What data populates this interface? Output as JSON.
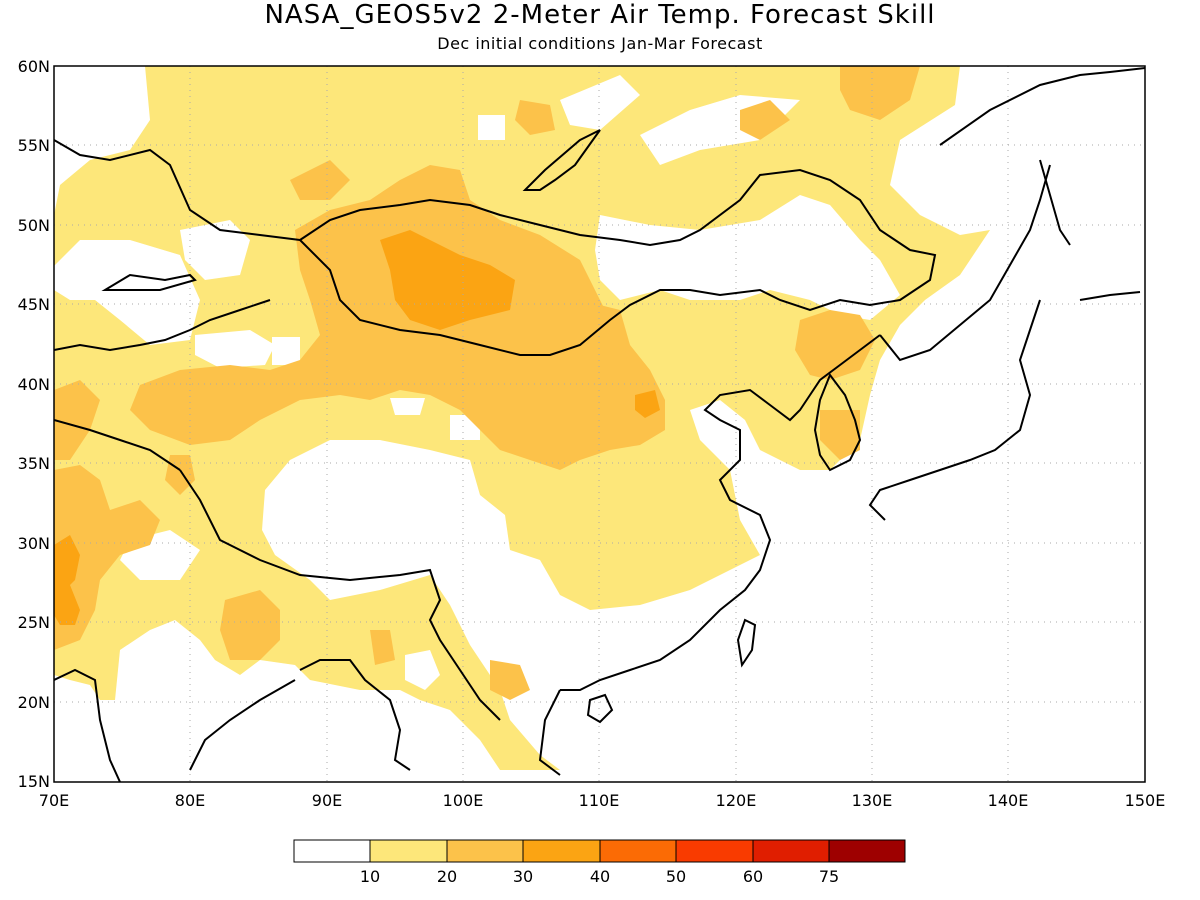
{
  "title": "NASA_GEOS5v2 2-Meter Air Temp. Forecast Skill",
  "subtitle": "Dec initial conditions  Jan-Mar Forecast",
  "map": {
    "lon_range": [
      70,
      150
    ],
    "lat_range": [
      15,
      60
    ],
    "lon_ticks": [
      "70E",
      "80E",
      "90E",
      "100E",
      "110E",
      "120E",
      "130E",
      "140E",
      "150E"
    ],
    "lat_ticks": [
      "60N",
      "55N",
      "50N",
      "45N",
      "40N",
      "35N",
      "30N",
      "25N",
      "20N",
      "15N"
    ],
    "grid": "dotted"
  },
  "colors": {
    "c0": "#ffffff",
    "c10": "#fde77a",
    "c20": "#fcc24a",
    "c30": "#fba413",
    "c40": "#fb6b05",
    "c50": "#f93b00",
    "c60": "#e01e00",
    "c75": "#9e0000"
  },
  "legend": {
    "labels": [
      "10",
      "20",
      "30",
      "40",
      "50",
      "60",
      "75"
    ]
  }
}
